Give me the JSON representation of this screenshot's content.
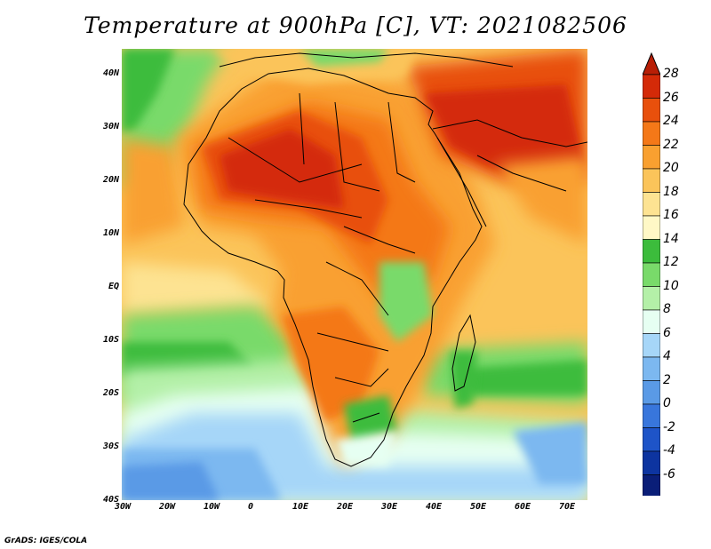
{
  "title": "Temperature at 900hPa [C], VT: 2021082506",
  "credit": "GrADS: IGES/COLA",
  "y_axis_labels": [
    "40N",
    "30N",
    "20N",
    "10N",
    "EQ",
    "10S",
    "20S",
    "30S",
    "40S"
  ],
  "x_axis_labels": [
    "30W",
    "20W",
    "10W",
    "0",
    "10E",
    "20E",
    "30E",
    "40E",
    "50E",
    "60E",
    "70E"
  ],
  "colorbar": {
    "labels": [
      "28",
      "26",
      "24",
      "22",
      "20",
      "18",
      "16",
      "14",
      "12",
      "10",
      "8",
      "6",
      "4",
      "2",
      "0",
      "-2",
      "-4",
      "-6"
    ],
    "colors": [
      "#d42a08",
      "#e8500c",
      "#f47818",
      "#f9a030",
      "#fbc45a",
      "#fde392",
      "#fff8c6",
      "#3cbc3c",
      "#79da6a",
      "#b4f0a8",
      "#e6fff2",
      "#a6d6f8",
      "#7cb8f0",
      "#5a9ae6",
      "#3876dc",
      "#1e54c8",
      "#0d34a0",
      "#0a1e78"
    ],
    "top_cap": "#b81e06",
    "bottom_cap": "#dce8ff"
  }
}
